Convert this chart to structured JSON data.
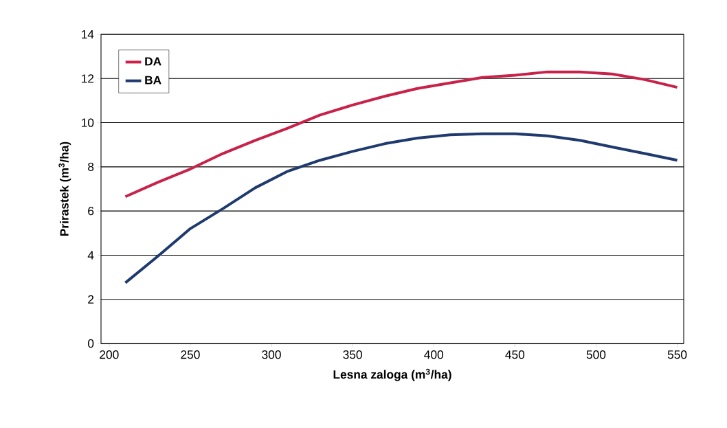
{
  "chart_data": {
    "type": "line",
    "xlabel": "Lesna zaloga (m$^{3}$/ha)",
    "ylabel": "Prirastek (m$^{3}$/ha)",
    "x": [
      210,
      230,
      250,
      270,
      290,
      310,
      330,
      350,
      370,
      390,
      410,
      430,
      450,
      470,
      490,
      510,
      530,
      550
    ],
    "series": [
      {
        "name": "DA",
        "color": "#c8224a",
        "values": [
          6.65,
          7.3,
          7.9,
          8.6,
          9.2,
          9.75,
          10.35,
          10.8,
          11.2,
          11.55,
          11.8,
          12.05,
          12.15,
          12.3,
          12.3,
          12.2,
          11.95,
          11.6
        ]
      },
      {
        "name": "BA",
        "color": "#1f3a6e",
        "values": [
          2.75,
          3.95,
          5.2,
          6.1,
          7.05,
          7.8,
          8.3,
          8.7,
          9.05,
          9.3,
          9.45,
          9.5,
          9.5,
          9.4,
          9.2,
          8.9,
          8.6,
          8.3
        ]
      }
    ],
    "xlim": [
      195,
      554
    ],
    "ylim": [
      0,
      14
    ],
    "xticks": [
      200,
      250,
      300,
      350,
      400,
      450,
      500,
      550
    ],
    "yticks": [
      0,
      2,
      4,
      6,
      8,
      10,
      12,
      14
    ],
    "grid": "y",
    "legend": "top left",
    "marker": "none",
    "line_style": "solid"
  }
}
